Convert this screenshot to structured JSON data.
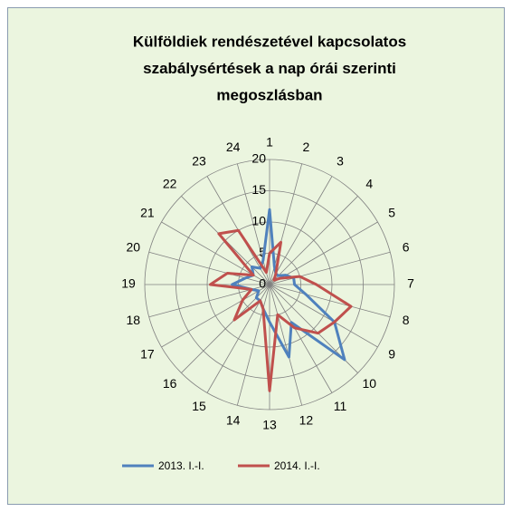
{
  "chart_data": {
    "type": "radar",
    "title": [
      "Külföldiek rendészetével kapcsolatos",
      "szabálysértések a nap órái szerinti",
      "megoszlásban"
    ],
    "categories": [
      "1",
      "2",
      "3",
      "4",
      "5",
      "6",
      "7",
      "8",
      "9",
      "10",
      "11",
      "12",
      "13",
      "14",
      "15",
      "16",
      "17",
      "18",
      "19",
      "20",
      "21",
      "22",
      "23",
      "24"
    ],
    "series": [
      {
        "name": "2013. I.-I.",
        "color": "#4f81bd",
        "values": [
          12,
          3,
          2,
          2,
          3,
          4,
          4,
          6,
          12,
          17,
          7,
          12,
          6,
          4,
          3,
          3,
          2,
          3,
          6,
          4,
          3,
          4,
          3,
          4
        ]
      },
      {
        "name": "2014. I.-I.",
        "color": "#c0504d",
        "values": [
          5,
          7,
          2,
          1,
          2,
          5,
          7.5,
          13.5,
          12,
          11,
          8,
          5,
          17,
          4,
          3,
          8,
          5,
          3,
          9.5,
          7,
          3,
          11.5,
          10,
          2
        ]
      }
    ],
    "ylim": [
      0,
      20
    ],
    "yticks": [
      0,
      5,
      10,
      15,
      20
    ],
    "grid": true,
    "legend": "bottom"
  }
}
